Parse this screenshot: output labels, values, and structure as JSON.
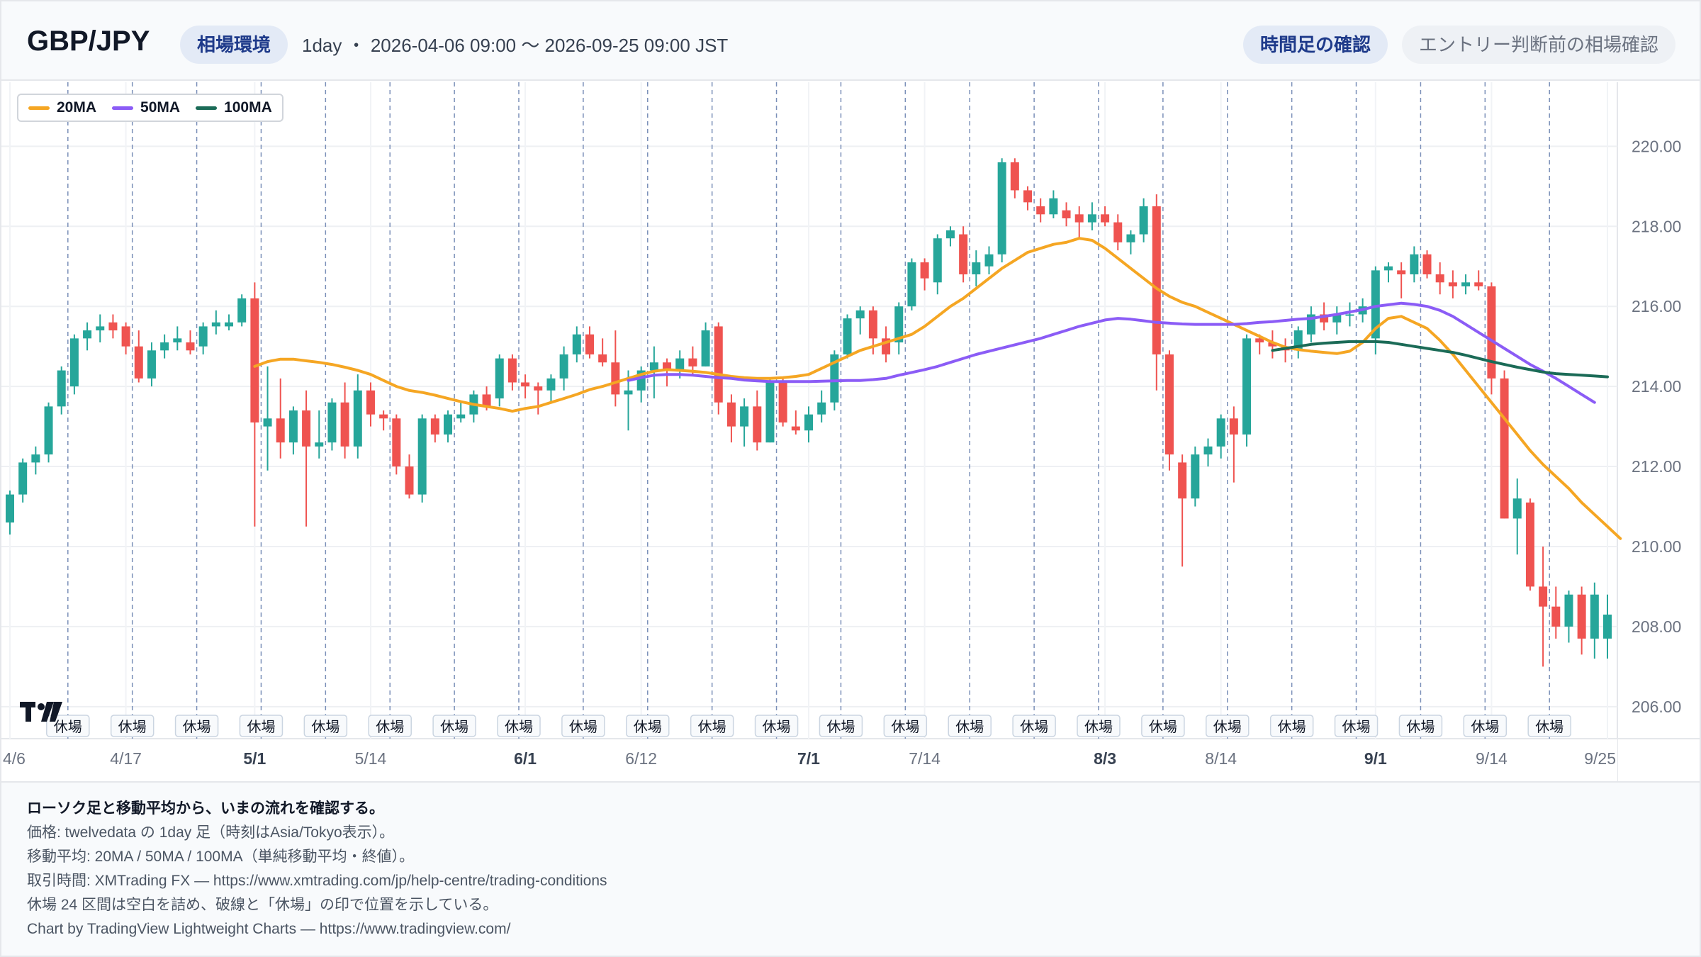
{
  "header": {
    "pair": "GBP/JPY",
    "env_label": "相場環境",
    "range_text": "1day ・ 2026-04-06 09:00 〜 2026-09-25 09:00 JST",
    "timeframe_button": "時間足の確認",
    "entry_check_button": "エントリー判断前の相場確認"
  },
  "legend": [
    {
      "label": "20MA",
      "color": "#f5a623"
    },
    {
      "label": "50MA",
      "color": "#8b5cf6"
    },
    {
      "label": "100MA",
      "color": "#1b6b57"
    }
  ],
  "footer": {
    "lead": "ローソク足と移動平均から、いまの流れを確認する。",
    "lines": [
      "価格: twelvedata の 1day 足（時刻はAsia/Tokyo表示）。",
      "移動平均: 20MA / 50MA / 100MA（単純移動平均・終値）。",
      "取引時間: XMTrading FX — https://www.xmtrading.com/jp/help-centre/trading-conditions",
      "休場 24 区間は空白を詰め、破線と「休場」の印で位置を示している。",
      "Chart by TradingView Lightweight Charts — https://www.tradingview.com/"
    ]
  },
  "chart_data": {
    "type": "candlestick",
    "y_ticks": [
      "206.00",
      "208.00",
      "210.00",
      "212.00",
      "214.00",
      "216.00",
      "218.00",
      "220.00"
    ],
    "ylim": [
      205.2,
      221.6
    ],
    "x_ticks": [
      {
        "label": "4/6",
        "index": 0,
        "bold": false
      },
      {
        "label": "4/17",
        "index": 9,
        "bold": false
      },
      {
        "label": "5/1",
        "index": 19,
        "bold": true
      },
      {
        "label": "5/14",
        "index": 28,
        "bold": false
      },
      {
        "label": "6/1",
        "index": 40,
        "bold": true
      },
      {
        "label": "6/12",
        "index": 49,
        "bold": false
      },
      {
        "label": "7/1",
        "index": 62,
        "bold": true
      },
      {
        "label": "7/14",
        "index": 71,
        "bold": false
      },
      {
        "label": "8/3",
        "index": 85,
        "bold": true
      },
      {
        "label": "8/14",
        "index": 94,
        "bold": false
      },
      {
        "label": "9/1",
        "index": 106,
        "bold": true
      },
      {
        "label": "9/14",
        "index": 115,
        "bold": false
      },
      {
        "label": "9/25",
        "index": 124,
        "bold": false
      }
    ],
    "closure_label": "休場",
    "closures_after_index": [
      4,
      9,
      14,
      19,
      24,
      29,
      34,
      39,
      44,
      49,
      54,
      59,
      64,
      69,
      74,
      79,
      84,
      89,
      94,
      99,
      104,
      109,
      114,
      119
    ],
    "candles": [
      [
        210.6,
        211.4,
        210.3,
        211.3
      ],
      [
        211.3,
        212.2,
        211.1,
        212.1
      ],
      [
        212.1,
        212.5,
        211.8,
        212.3
      ],
      [
        212.3,
        213.6,
        212.1,
        213.5
      ],
      [
        213.5,
        214.5,
        213.3,
        214.4
      ],
      [
        214.0,
        215.3,
        213.8,
        215.2
      ],
      [
        215.2,
        215.6,
        214.9,
        215.4
      ],
      [
        215.4,
        215.8,
        215.1,
        215.5
      ],
      [
        215.6,
        215.8,
        215.2,
        215.4
      ],
      [
        215.5,
        215.6,
        214.8,
        215.0
      ],
      [
        215.0,
        215.4,
        214.1,
        214.2
      ],
      [
        214.2,
        215.1,
        214.0,
        214.9
      ],
      [
        214.9,
        215.3,
        214.7,
        215.1
      ],
      [
        215.1,
        215.5,
        214.9,
        215.2
      ],
      [
        215.1,
        215.4,
        214.8,
        214.9
      ],
      [
        215.0,
        215.6,
        214.8,
        215.5
      ],
      [
        215.5,
        215.9,
        215.3,
        215.6
      ],
      [
        215.5,
        215.8,
        215.4,
        215.6
      ],
      [
        215.6,
        216.3,
        215.5,
        216.2
      ],
      [
        216.2,
        216.6,
        210.5,
        213.1
      ],
      [
        213.0,
        214.5,
        211.9,
        213.2
      ],
      [
        213.2,
        214.2,
        212.2,
        212.6
      ],
      [
        212.6,
        213.5,
        212.3,
        213.4
      ],
      [
        213.4,
        213.9,
        210.5,
        212.5
      ],
      [
        212.5,
        213.4,
        212.2,
        212.6
      ],
      [
        212.6,
        213.7,
        212.4,
        213.6
      ],
      [
        213.6,
        214.1,
        212.2,
        212.5
      ],
      [
        212.5,
        214.3,
        212.2,
        213.9
      ],
      [
        213.9,
        214.1,
        213.0,
        213.3
      ],
      [
        213.3,
        213.4,
        212.9,
        213.2
      ],
      [
        213.2,
        213.3,
        211.8,
        212.0
      ],
      [
        212.0,
        212.3,
        211.2,
        211.3
      ],
      [
        211.3,
        213.3,
        211.1,
        213.2
      ],
      [
        213.2,
        213.3,
        212.6,
        212.8
      ],
      [
        212.8,
        213.4,
        212.6,
        213.3
      ],
      [
        213.2,
        213.6,
        213.1,
        213.3
      ],
      [
        213.3,
        213.9,
        213.1,
        213.8
      ],
      [
        213.8,
        214.0,
        213.4,
        213.5
      ],
      [
        213.7,
        214.8,
        213.5,
        214.7
      ],
      [
        214.7,
        214.8,
        213.9,
        214.1
      ],
      [
        214.1,
        214.3,
        213.7,
        214.0
      ],
      [
        214.0,
        214.1,
        213.3,
        213.9
      ],
      [
        213.9,
        214.3,
        213.6,
        214.2
      ],
      [
        214.2,
        215.0,
        213.9,
        214.8
      ],
      [
        214.8,
        215.5,
        214.6,
        215.3
      ],
      [
        215.3,
        215.5,
        214.7,
        214.8
      ],
      [
        214.8,
        215.2,
        214.5,
        214.6
      ],
      [
        214.6,
        215.4,
        213.5,
        213.8
      ],
      [
        213.8,
        214.4,
        212.9,
        213.9
      ],
      [
        213.9,
        214.5,
        213.6,
        214.4
      ],
      [
        214.4,
        215.0,
        213.7,
        214.6
      ],
      [
        214.6,
        214.7,
        214.0,
        214.4
      ],
      [
        214.4,
        214.9,
        214.2,
        214.7
      ],
      [
        214.7,
        215.0,
        214.3,
        214.5
      ],
      [
        214.5,
        215.6,
        214.5,
        215.4
      ],
      [
        215.5,
        215.6,
        213.3,
        213.6
      ],
      [
        213.6,
        213.8,
        212.6,
        213.0
      ],
      [
        213.0,
        213.7,
        212.5,
        213.5
      ],
      [
        213.5,
        213.9,
        212.4,
        212.6
      ],
      [
        212.6,
        214.2,
        212.6,
        214.1
      ],
      [
        214.1,
        214.2,
        213.0,
        213.1
      ],
      [
        213.0,
        213.4,
        212.8,
        212.9
      ],
      [
        212.9,
        213.5,
        212.6,
        213.3
      ],
      [
        213.3,
        213.9,
        213.1,
        213.6
      ],
      [
        213.6,
        214.9,
        213.4,
        214.8
      ],
      [
        214.8,
        215.8,
        214.7,
        215.7
      ],
      [
        215.7,
        216.0,
        215.3,
        215.9
      ],
      [
        215.9,
        216.0,
        214.8,
        215.2
      ],
      [
        215.2,
        215.5,
        214.6,
        214.8
      ],
      [
        215.1,
        216.1,
        214.8,
        216.0
      ],
      [
        216.0,
        217.2,
        215.9,
        217.1
      ],
      [
        217.1,
        217.2,
        216.4,
        216.7
      ],
      [
        216.6,
        217.8,
        216.3,
        217.7
      ],
      [
        217.7,
        218.0,
        217.5,
        217.9
      ],
      [
        217.8,
        218.0,
        216.6,
        216.8
      ],
      [
        216.8,
        217.4,
        216.5,
        217.1
      ],
      [
        217.0,
        217.5,
        216.8,
        217.3
      ],
      [
        217.3,
        219.7,
        217.1,
        219.6
      ],
      [
        219.6,
        219.7,
        218.7,
        218.9
      ],
      [
        218.9,
        219.0,
        218.4,
        218.6
      ],
      [
        218.5,
        218.7,
        218.1,
        218.3
      ],
      [
        218.3,
        218.9,
        218.2,
        218.7
      ],
      [
        218.4,
        218.6,
        218.0,
        218.2
      ],
      [
        218.3,
        218.5,
        217.7,
        218.1
      ],
      [
        218.1,
        218.6,
        217.9,
        218.3
      ],
      [
        218.3,
        218.5,
        218.0,
        218.1
      ],
      [
        218.1,
        218.3,
        217.4,
        217.6
      ],
      [
        217.6,
        217.9,
        217.3,
        217.8
      ],
      [
        217.8,
        218.7,
        217.6,
        218.5
      ],
      [
        218.5,
        218.8,
        213.9,
        214.8
      ],
      [
        214.8,
        214.9,
        211.9,
        212.3
      ],
      [
        212.1,
        212.3,
        209.5,
        211.2
      ],
      [
        211.2,
        212.5,
        211.0,
        212.3
      ],
      [
        212.3,
        212.7,
        212.0,
        212.5
      ],
      [
        212.5,
        213.3,
        212.2,
        213.2
      ],
      [
        213.2,
        213.5,
        211.6,
        212.8
      ],
      [
        212.8,
        215.3,
        212.5,
        215.2
      ],
      [
        215.2,
        215.3,
        214.8,
        215.1
      ],
      [
        215.1,
        215.4,
        214.7,
        215.0
      ],
      [
        215.0,
        215.2,
        214.6,
        214.9
      ],
      [
        214.9,
        215.5,
        214.7,
        215.4
      ],
      [
        215.3,
        216.0,
        215.1,
        215.8
      ],
      [
        215.8,
        216.1,
        215.4,
        215.6
      ],
      [
        215.6,
        216.0,
        215.3,
        215.8
      ],
      [
        215.8,
        216.1,
        215.5,
        215.8
      ],
      [
        215.8,
        216.2,
        215.6,
        216.0
      ],
      [
        215.2,
        217.0,
        214.8,
        216.9
      ],
      [
        216.9,
        217.1,
        216.6,
        217.0
      ],
      [
        216.9,
        217.1,
        216.2,
        216.8
      ],
      [
        216.8,
        217.5,
        216.6,
        217.3
      ],
      [
        217.3,
        217.4,
        216.7,
        216.8
      ],
      [
        216.8,
        217.1,
        216.3,
        216.6
      ],
      [
        216.6,
        216.9,
        216.2,
        216.5
      ],
      [
        216.5,
        216.8,
        216.3,
        216.6
      ],
      [
        216.6,
        216.9,
        216.4,
        216.5
      ],
      [
        216.5,
        216.6,
        213.8,
        214.2
      ],
      [
        214.2,
        214.4,
        210.7,
        210.7
      ],
      [
        210.7,
        211.7,
        209.8,
        211.2
      ],
      [
        211.1,
        211.2,
        208.9,
        209.0
      ],
      [
        209.0,
        210.0,
        207.0,
        208.5
      ],
      [
        208.5,
        209.0,
        207.7,
        208.0
      ],
      [
        208.0,
        208.9,
        207.6,
        208.8
      ],
      [
        208.8,
        209.0,
        207.3,
        207.7
      ],
      [
        207.7,
        209.1,
        207.2,
        208.8
      ],
      [
        207.7,
        208.8,
        207.2,
        208.3
      ]
    ],
    "ma_lines": [
      {
        "name": "20MA",
        "color": "#f5a623",
        "start_index": 19,
        "values": [
          214.5,
          214.62,
          214.68,
          214.68,
          214.64,
          214.6,
          214.55,
          214.48,
          214.4,
          214.3,
          214.15,
          214.0,
          213.9,
          213.85,
          213.78,
          213.7,
          213.62,
          213.55,
          213.5,
          213.45,
          213.38,
          213.45,
          213.5,
          213.6,
          213.7,
          213.8,
          213.92,
          214.0,
          214.1,
          214.2,
          214.3,
          214.38,
          214.42,
          214.4,
          214.38,
          214.35,
          214.3,
          214.25,
          214.22,
          214.2,
          214.2,
          214.22,
          214.25,
          214.3,
          214.45,
          214.6,
          214.75,
          214.9,
          215.0,
          215.1,
          215.2,
          215.3,
          215.5,
          215.75,
          216.0,
          216.2,
          216.45,
          216.7,
          216.95,
          217.15,
          217.35,
          217.45,
          217.55,
          217.6,
          217.7,
          217.65,
          217.45,
          217.2,
          216.95,
          216.7,
          216.45,
          216.25,
          216.1,
          216.0,
          215.85,
          215.7,
          215.55,
          215.4,
          215.25,
          215.1,
          214.98,
          214.92,
          214.88,
          214.85,
          214.82,
          214.88,
          215.1,
          215.45,
          215.7,
          215.75,
          215.6,
          215.45,
          215.15,
          214.8,
          214.4,
          214.0,
          213.6,
          213.2,
          212.8,
          212.4,
          212.05,
          211.75,
          211.45,
          211.1,
          210.8,
          210.5,
          210.2
        ]
      },
      {
        "name": "50MA",
        "color": "#8b5cf6",
        "start_index": 48,
        "values": [
          214.15,
          214.22,
          214.28,
          214.3,
          214.3,
          214.28,
          214.25,
          214.22,
          214.2,
          214.16,
          214.14,
          214.12,
          214.12,
          214.12,
          214.12,
          214.13,
          214.14,
          214.15,
          214.15,
          214.17,
          214.2,
          214.28,
          214.35,
          214.42,
          214.5,
          214.6,
          214.7,
          214.8,
          214.88,
          214.96,
          215.04,
          215.12,
          215.2,
          215.3,
          215.4,
          215.5,
          215.58,
          215.66,
          215.7,
          215.68,
          215.64,
          215.6,
          215.58,
          215.56,
          215.55,
          215.55,
          215.55,
          215.55,
          215.57,
          215.6,
          215.62,
          215.65,
          215.68,
          215.7,
          215.75,
          215.8,
          215.86,
          215.92,
          216.0,
          216.04,
          216.08,
          216.05,
          216.0,
          215.9,
          215.75,
          215.55,
          215.35,
          215.15,
          214.95,
          214.75,
          214.55,
          214.38,
          214.2,
          214.0,
          213.8,
          213.6
        ]
      },
      {
        "name": "100MA",
        "color": "#1b6b57",
        "start_index": 98,
        "values": [
          214.9,
          214.95,
          215.0,
          215.05,
          215.08,
          215.1,
          215.12,
          215.12,
          215.12,
          215.1,
          215.05,
          215.0,
          214.95,
          214.9,
          214.85,
          214.78,
          214.7,
          214.62,
          214.55,
          214.48,
          214.42,
          214.36,
          214.32,
          214.3,
          214.28,
          214.26,
          214.24
        ]
      }
    ]
  }
}
